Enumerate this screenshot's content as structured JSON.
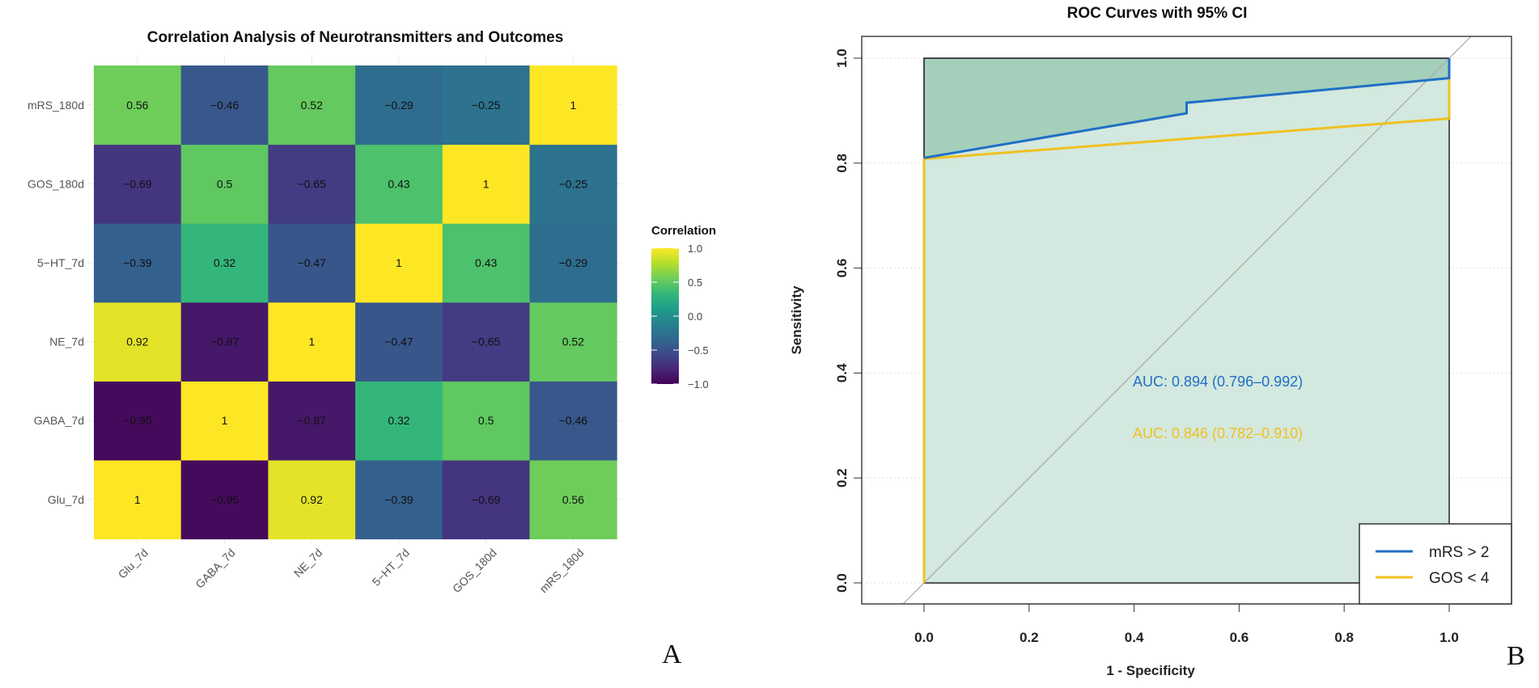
{
  "panel_labels": {
    "a": "A",
    "b": "B"
  },
  "chart_data": [
    {
      "type": "heatmap",
      "title": "Correlation Analysis of Neurotransmitters and Outcomes",
      "x_labels": [
        "Glu_7d",
        "GABA_7d",
        "NE_7d",
        "5-HT_7d",
        "GOS_180d",
        "mRS_180d"
      ],
      "y_labels": [
        "Glu_7d",
        "GABA_7d",
        "NE_7d",
        "5-HT_7d",
        "GOS_180d",
        "mRS_180d"
      ],
      "values": [
        [
          1,
          -0.95,
          0.92,
          -0.39,
          -0.69,
          0.56
        ],
        [
          -0.95,
          1,
          -0.87,
          0.32,
          0.5,
          -0.46
        ],
        [
          0.92,
          -0.87,
          1,
          -0.47,
          -0.65,
          0.52
        ],
        [
          -0.39,
          0.32,
          -0.47,
          1,
          0.43,
          -0.29
        ],
        [
          -0.69,
          0.5,
          -0.65,
          0.43,
          1,
          -0.25
        ],
        [
          0.56,
          -0.46,
          0.52,
          -0.29,
          -0.25,
          1
        ]
      ],
      "colorscale": "viridis",
      "legend": {
        "title": "Correlation",
        "range": [
          -1,
          1
        ],
        "ticks": [
          "1.0",
          "0.5",
          "0.0",
          "-0.5",
          "-1.0"
        ],
        "placement": "right"
      }
    },
    {
      "type": "line",
      "title": "ROC Curves with 95% CI",
      "xlabel": "1 - Specificity",
      "ylabel": "Sensitivity",
      "xlim": [
        -0.12,
        1.12
      ],
      "ylim": [
        -0.08,
        1.04
      ],
      "x_ticks": [
        "0.0",
        "0.2",
        "0.4",
        "0.6",
        "0.8",
        "1.0"
      ],
      "y_ticks": [
        "0.0",
        "0.2",
        "0.4",
        "0.6",
        "0.8",
        "1.0"
      ],
      "series": [
        {
          "name": "mRS > 2",
          "color": "#1f6fc5",
          "points": [
            [
              0,
              0.81
            ],
            [
              0.5,
              0.895
            ],
            [
              0.5,
              0.915
            ],
            [
              1,
              0.962
            ],
            [
              1,
              1
            ]
          ],
          "auc_label": "AUC: 0.894 (0.796–0.992)"
        },
        {
          "name": "GOS < 4",
          "color": "#f0c020",
          "points": [
            [
              0,
              0
            ],
            [
              0,
              0.808
            ],
            [
              1,
              0.885
            ],
            [
              1,
              1
            ]
          ],
          "auc_label": "AUC: 0.846 (0.782–0.910)"
        }
      ],
      "ci_fill_colors": {
        "outer": "#a3cfbb",
        "inner": "#d3e8de"
      },
      "reference_line": "diagonal",
      "legend_placement": "bottom-right"
    }
  ]
}
